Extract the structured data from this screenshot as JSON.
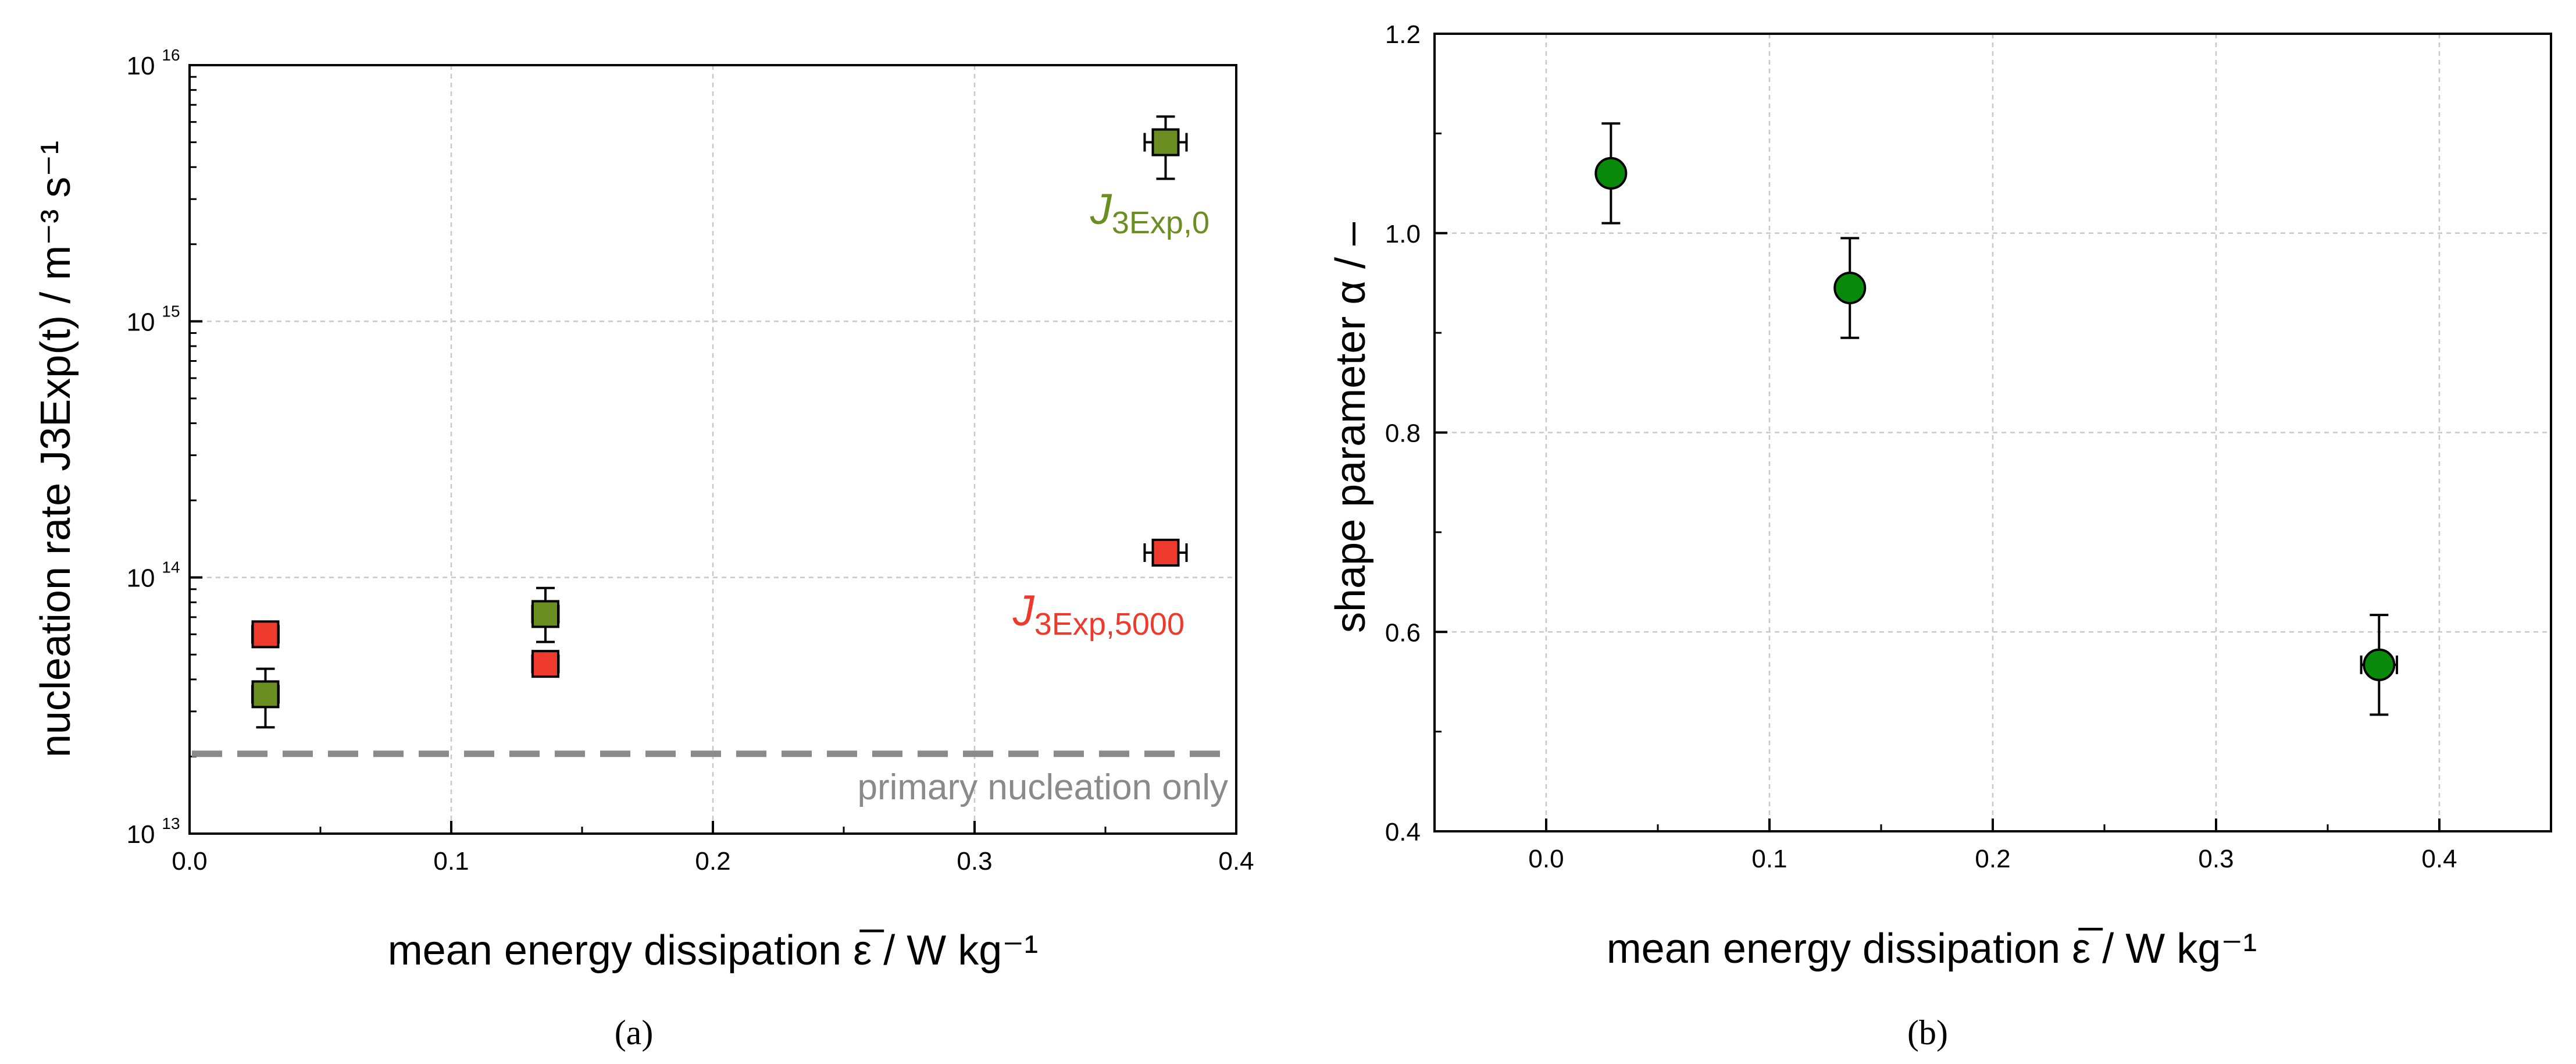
{
  "chart_data": [
    {
      "panel": "a",
      "type": "scatter",
      "yscale": "log",
      "xlim": [
        0.0,
        0.4
      ],
      "ylim": [
        10000000000000.0,
        1e+16
      ],
      "x_ticks": [
        "0.0",
        "0.1",
        "0.2",
        "0.3",
        "0.4"
      ],
      "y_ticks": [
        {
          "base": "10",
          "exp": "13"
        },
        {
          "base": "10",
          "exp": "14"
        },
        {
          "base": "10",
          "exp": "15"
        },
        {
          "base": "10",
          "exp": "16"
        }
      ],
      "xlabel": "mean energy dissipation ε̅  /  W kg⁻¹",
      "ylabel": "nucleation rate J3Exp(t)  /  m⁻³ s⁻¹",
      "caption": "(a)",
      "colors": {
        "J3Exp0": "#6b8e23",
        "J3Exp5000": "#ee3a2c",
        "reference": "#8a8a8a"
      },
      "series": [
        {
          "name": "J3Exp,0",
          "label_main": "J",
          "label_sub": "3Exp,0",
          "x": [
            0.029,
            0.136,
            0.373
          ],
          "y": [
            35000000000000.0,
            72000000000000.0,
            5000000000000000.0
          ],
          "y_err_low": [
            26000000000000.0,
            56000000000000.0,
            3600000000000000.0
          ],
          "y_err_high": [
            44000000000000.0,
            91000000000000.0,
            6300000000000000.0
          ],
          "x_err": [
            0.005,
            0.005,
            0.008
          ]
        },
        {
          "name": "J3Exp,5000",
          "label_main": "J",
          "label_sub": "3Exp,5000",
          "x": [
            0.029,
            0.136,
            0.373
          ],
          "y": [
            60000000000000.0,
            46000000000000.0,
            125000000000000.0
          ],
          "y_err_low": [
            54000000000000.0,
            42000000000000.0,
            115000000000000.0
          ],
          "y_err_high": [
            66000000000000.0,
            50000000000000.0,
            135000000000000.0
          ],
          "x_err": [
            0.005,
            0.005,
            0.008
          ]
        }
      ],
      "reference_line": {
        "label": "primary nucleation only",
        "y": 20500000000000.0
      }
    },
    {
      "panel": "b",
      "type": "scatter",
      "xlim": [
        -0.05,
        0.45
      ],
      "ylim": [
        0.4,
        1.2
      ],
      "x_ticks": [
        "0.0",
        "0.1",
        "0.2",
        "0.3",
        "0.4"
      ],
      "y_ticks": [
        "0.4",
        "0.6",
        "0.8",
        "1.0",
        "1.2"
      ],
      "xlabel": "mean energy dissipation ε̅  /  W kg⁻¹",
      "ylabel": "shape parameter α  /  –",
      "caption": "(b)",
      "colors": {
        "marker": "#0a8a0a"
      },
      "series": [
        {
          "name": "shape parameter",
          "x": [
            0.029,
            0.136,
            0.373
          ],
          "y": [
            1.06,
            0.945,
            0.567
          ],
          "y_err": [
            0.05,
            0.05,
            0.05
          ],
          "x_err": [
            0.005,
            0.005,
            0.008
          ]
        }
      ]
    }
  ]
}
